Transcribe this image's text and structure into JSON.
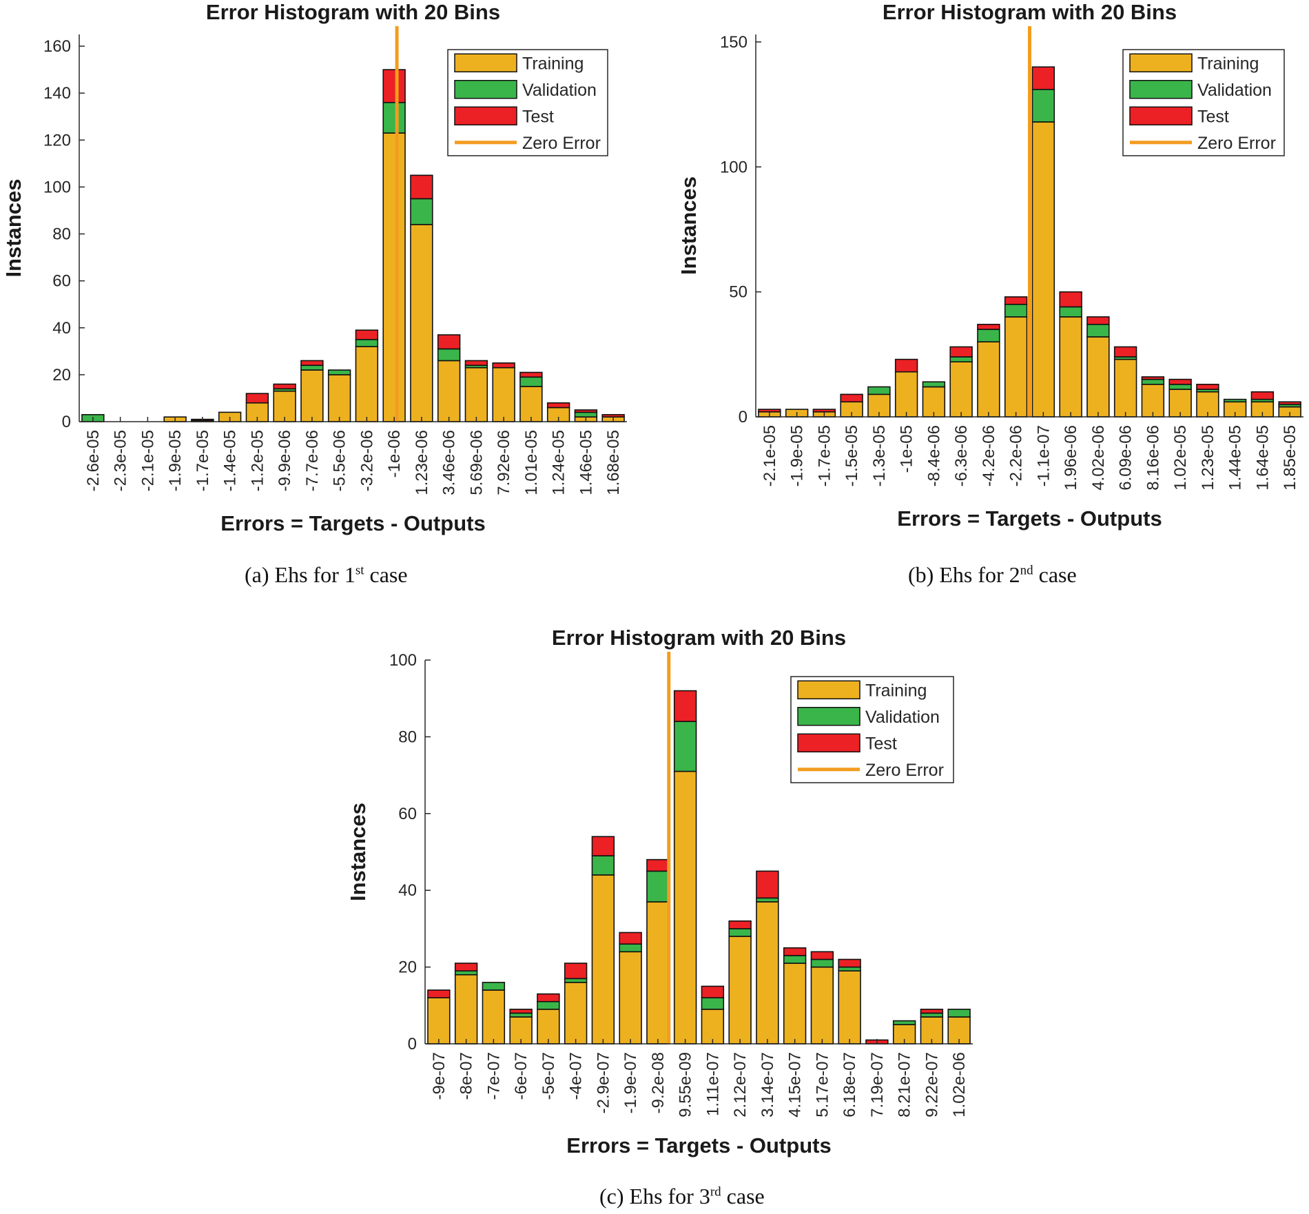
{
  "colors": {
    "training": "#EDB120",
    "validation": "#3AB54A",
    "test": "#EC2125",
    "zero_error": "#F39C1F",
    "axis": "#262626"
  },
  "legend": [
    "Training",
    "Validation",
    "Test",
    "Zero Error"
  ],
  "captions": [
    {
      "prefix": "(a) Ehs for 1",
      "sup": "st",
      "suffix": " case"
    },
    {
      "prefix": "(b) Ehs for 2",
      "sup": "nd",
      "suffix": " case"
    },
    {
      "prefix": "(c) Ehs for 3",
      "sup": "rd",
      "suffix": " case"
    }
  ],
  "chart_data": [
    {
      "type": "bar",
      "stacked": true,
      "title": "Error Histogram with 20 Bins",
      "xlabel": "Errors = Targets - Outputs",
      "ylabel": "Instances",
      "ylim": [
        0,
        165
      ],
      "yticks": [
        0,
        20,
        40,
        60,
        80,
        100,
        120,
        140,
        160
      ],
      "categories": [
        "-2.6e-05",
        "-2.3e-05",
        "-2.1e-05",
        "-1.9e-05",
        "-1.7e-05",
        "-1.4e-05",
        "-1.2e-05",
        "-9.9e-06",
        "-7.7e-06",
        "-5.5e-06",
        "-3.2e-06",
        "-1e-06",
        "1.23e-06",
        "3.46e-06",
        "5.69e-06",
        "7.92e-06",
        "1.01e-05",
        "1.24e-05",
        "1.46e-05",
        "1.68e-05"
      ],
      "zero_error_bin": 11.6,
      "series": [
        {
          "name": "Training",
          "values": [
            0,
            0,
            0,
            2,
            0.5,
            4,
            8,
            13,
            22,
            20,
            32,
            123,
            84,
            26,
            23,
            23,
            15,
            6,
            2,
            2
          ]
        },
        {
          "name": "Validation",
          "values": [
            3,
            0,
            0,
            0,
            0,
            0,
            0,
            1,
            2,
            2,
            3,
            13,
            11,
            5,
            1,
            0,
            4,
            0,
            2,
            0
          ]
        },
        {
          "name": "Test",
          "values": [
            0,
            0,
            0,
            0,
            0.5,
            0,
            4,
            2,
            2,
            0,
            4,
            14,
            10,
            6,
            2,
            2,
            2,
            2,
            1,
            1
          ]
        }
      ],
      "legend": [
        "Training",
        "Validation",
        "Test",
        "Zero Error"
      ]
    },
    {
      "type": "bar",
      "stacked": true,
      "title": "Error Histogram with 20 Bins",
      "xlabel": "Errors = Targets - Outputs",
      "ylabel": "Instances",
      "ylim": [
        0,
        153
      ],
      "yticks": [
        0,
        50,
        100,
        150
      ],
      "categories": [
        "-2.1e-05",
        "-1.9e-05",
        "-1.7e-05",
        "-1.5e-05",
        "-1.3e-05",
        "-1e-05",
        "-8.4e-06",
        "-6.3e-06",
        "-4.2e-06",
        "-2.2e-06",
        "-1.1e-07",
        "1.96e-06",
        "4.02e-06",
        "6.09e-06",
        "8.16e-06",
        "1.02e-05",
        "1.23e-05",
        "1.44e-05",
        "1.64e-05",
        "1.85e-05"
      ],
      "zero_error_bin": 10.0,
      "series": [
        {
          "name": "Training",
          "values": [
            2,
            3,
            2,
            6,
            9,
            18,
            12,
            22,
            30,
            40,
            118,
            40,
            32,
            23,
            13,
            11,
            10,
            6,
            6,
            4
          ]
        },
        {
          "name": "Validation",
          "values": [
            0,
            0,
            0,
            0,
            3,
            0,
            2,
            2,
            5,
            5,
            13,
            4,
            5,
            1,
            2,
            2,
            1,
            1,
            1,
            1
          ]
        },
        {
          "name": "Test",
          "values": [
            1,
            0,
            1,
            3,
            0,
            5,
            0,
            4,
            2,
            3,
            9,
            6,
            3,
            4,
            1,
            2,
            2,
            0,
            3,
            1
          ]
        }
      ],
      "legend": [
        "Training",
        "Validation",
        "Test",
        "Zero Error"
      ]
    },
    {
      "type": "bar",
      "stacked": true,
      "title": "Error Histogram with 20 Bins",
      "xlabel": "Errors = Targets - Outputs",
      "ylabel": "Instances",
      "ylim": [
        0,
        100
      ],
      "yticks": [
        0,
        20,
        40,
        60,
        80,
        100
      ],
      "categories": [
        "-9e-07",
        "-8e-07",
        "-7e-07",
        "-6e-07",
        "-5e-07",
        "-4e-07",
        "-2.9e-07",
        "-1.9e-07",
        "-9.2e-08",
        "9.55e-09",
        "1.11e-07",
        "2.12e-07",
        "3.14e-07",
        "4.15e-07",
        "5.17e-07",
        "6.18e-07",
        "7.19e-07",
        "8.21e-07",
        "9.22e-07",
        "1.02e-06"
      ],
      "zero_error_bin": 8.9,
      "series": [
        {
          "name": "Training",
          "values": [
            12,
            18,
            14,
            7,
            9,
            16,
            44,
            24,
            37,
            71,
            9,
            28,
            37,
            21,
            20,
            19,
            0,
            5,
            7,
            7
          ]
        },
        {
          "name": "Validation",
          "values": [
            0,
            1,
            2,
            1,
            2,
            1,
            5,
            2,
            8,
            13,
            3,
            2,
            1,
            2,
            2,
            1,
            0,
            1,
            1,
            2
          ]
        },
        {
          "name": "Test",
          "values": [
            2,
            2,
            0,
            1,
            2,
            4,
            5,
            3,
            3,
            8,
            3,
            2,
            7,
            2,
            2,
            2,
            1,
            0,
            1,
            0
          ]
        }
      ],
      "legend": [
        "Training",
        "Validation",
        "Test",
        "Zero Error"
      ]
    }
  ]
}
